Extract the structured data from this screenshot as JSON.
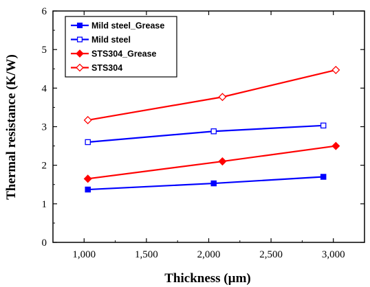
{
  "chart_data": {
    "type": "line",
    "title": "",
    "xlabel": "Thickness (µm)",
    "ylabel": "Thermal resistance (K/W)",
    "xlim": [
      750,
      3250
    ],
    "ylim": [
      0,
      6
    ],
    "x_ticks": [
      1000,
      1500,
      2000,
      2500,
      3000
    ],
    "x_tick_labels": [
      "1,000",
      "1,500",
      "2,000",
      "2,500",
      "3,000"
    ],
    "y_ticks": [
      0,
      1,
      2,
      3,
      4,
      5,
      6
    ],
    "y_tick_labels": [
      "0",
      "1",
      "2",
      "3",
      "4",
      "5",
      "6"
    ],
    "grid": false,
    "legend_position": "top-left",
    "series": [
      {
        "name": "Mild steel_Grease",
        "color": "#0000ff",
        "marker": "square-filled",
        "x": [
          1030,
          2040,
          2920
        ],
        "y": [
          1.37,
          1.53,
          1.7
        ]
      },
      {
        "name": "Mild steel",
        "color": "#0000ff",
        "marker": "square-open",
        "x": [
          1030,
          2040,
          2920
        ],
        "y": [
          2.6,
          2.88,
          3.03
        ]
      },
      {
        "name": "STS304_Grease",
        "color": "#ff0000",
        "marker": "diamond-filled",
        "x": [
          1030,
          2110,
          3020
        ],
        "y": [
          1.65,
          2.1,
          2.5
        ]
      },
      {
        "name": "STS304",
        "color": "#ff0000",
        "marker": "diamond-open",
        "x": [
          1030,
          2110,
          3020
        ],
        "y": [
          3.17,
          3.77,
          4.47
        ]
      }
    ]
  }
}
